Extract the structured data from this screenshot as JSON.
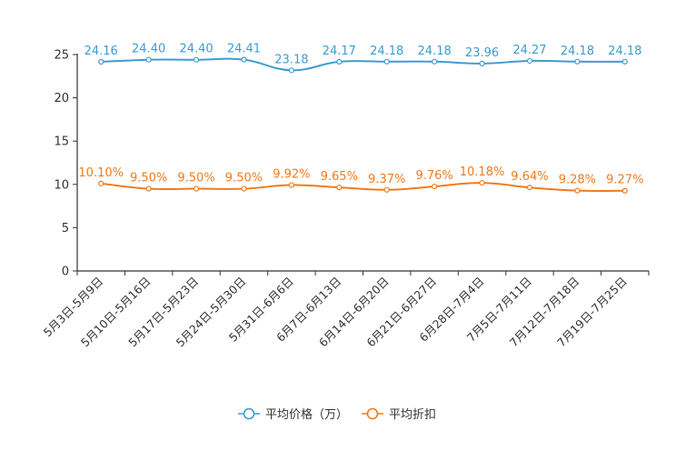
{
  "chart_data": {
    "type": "line",
    "categories": [
      "5月3日-5月9日",
      "5月10日-5月16日",
      "5月17日-5月23日",
      "5月24日-5月30日",
      "5月31日-6月6日",
      "6月7日-6月13日",
      "6月14日-6月20日",
      "6月21日-6月27日",
      "6月28日-7月4日",
      "7月5日-7月11日",
      "7月12日-7月18日",
      "7月19日-7月25日"
    ],
    "ylim": [
      0,
      25
    ],
    "yticks": [
      0,
      5,
      10,
      15,
      20,
      25
    ],
    "series": [
      {
        "name": "平均价格（万）",
        "color": "#3d9dd1",
        "values": [
          24.16,
          24.4,
          24.4,
          24.41,
          23.18,
          24.17,
          24.18,
          24.18,
          23.96,
          24.27,
          24.18,
          24.18
        ],
        "labels": [
          "24.16",
          "24.40",
          "24.40",
          "24.41",
          "23.18",
          "24.17",
          "24.18",
          "24.18",
          "23.96",
          "24.27",
          "24.18",
          "24.18"
        ]
      },
      {
        "name": "平均折扣",
        "color": "#f27b1c",
        "values": [
          10.1,
          9.5,
          9.5,
          9.5,
          9.92,
          9.65,
          9.37,
          9.76,
          10.18,
          9.64,
          9.28,
          9.27
        ],
        "labels": [
          "10.10%",
          "9.50%",
          "9.50%",
          "9.50%",
          "9.92%",
          "9.65%",
          "9.37%",
          "9.76%",
          "10.18%",
          "9.64%",
          "9.28%",
          "9.27%"
        ]
      }
    ],
    "legend": {
      "position": "bottom-center",
      "entries": [
        "平均价格（万）",
        "平均折扣"
      ]
    },
    "title": "",
    "xlabel": "",
    "ylabel": ""
  }
}
